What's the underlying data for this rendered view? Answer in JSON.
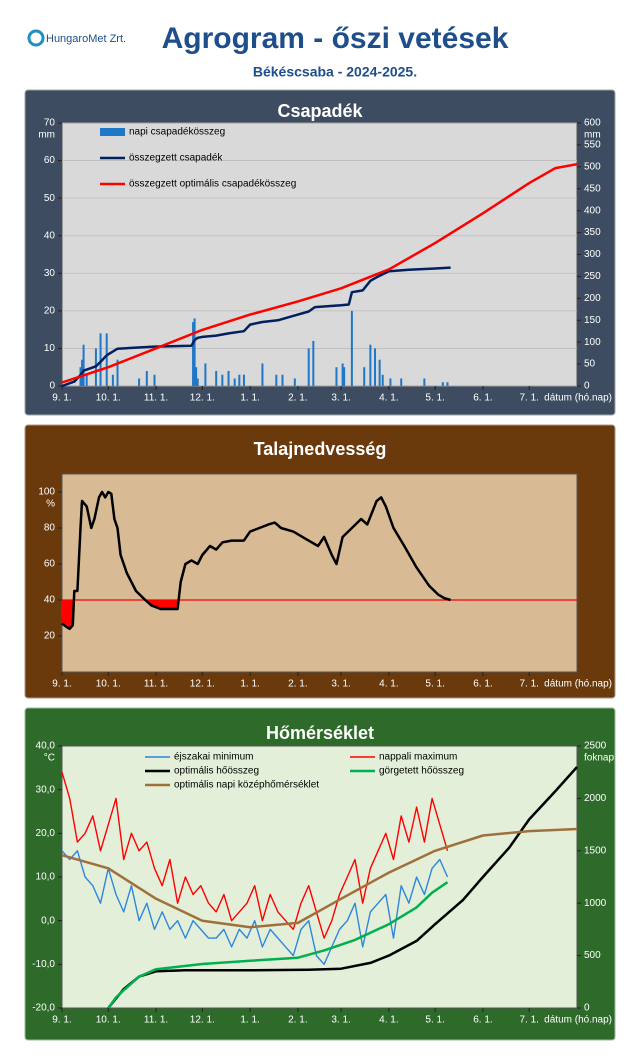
{
  "header": {
    "logo": "HungaroMet Zrt.",
    "title": "Agrogram - őszi vetések",
    "subtitle": "Békéscsaba - 2024-2025."
  },
  "chart_data": [
    {
      "type": "combo",
      "title": "Csapadék",
      "y_unit": "mm",
      "y2_unit": "mm",
      "x_label": "dátum (hó.nap)",
      "xlim": [
        0,
        334
      ],
      "xticks": [
        {
          "value": 0,
          "label": "9. 1."
        },
        {
          "value": 30,
          "label": "10. 1."
        },
        {
          "value": 61,
          "label": "11. 1."
        },
        {
          "value": 91,
          "label": "12. 1."
        },
        {
          "value": 122,
          "label": "1. 1."
        },
        {
          "value": 153,
          "label": "2. 1."
        },
        {
          "value": 181,
          "label": "3. 1."
        },
        {
          "value": 212,
          "label": "4. 1."
        },
        {
          "value": 242,
          "label": "5. 1."
        },
        {
          "value": 273,
          "label": "6. 1."
        },
        {
          "value": 303,
          "label": "7. 1."
        }
      ],
      "ylim": [
        0,
        70
      ],
      "yticks": [
        0,
        10,
        20,
        30,
        40,
        50,
        60,
        70
      ],
      "y2lim": [
        0,
        600
      ],
      "y2ticks": [
        0,
        50,
        100,
        150,
        200,
        250,
        300,
        350,
        400,
        450,
        500,
        550,
        600
      ],
      "grid": true,
      "legend": true,
      "series": [
        {
          "name": "napi csapadékösszeg",
          "kind": "bar",
          "color": "#1f77c8",
          "x": [
            12,
            13,
            14,
            16,
            22,
            25,
            29,
            33,
            36,
            50,
            55,
            60,
            85,
            86,
            87,
            88,
            93,
            100,
            104,
            108,
            112,
            115,
            118,
            130,
            139,
            143,
            151,
            160,
            163,
            178,
            182,
            183,
            188,
            196,
            200,
            203,
            206,
            208,
            213,
            220,
            235,
            247,
            250
          ],
          "values": [
            5,
            7,
            11,
            3,
            10,
            14,
            14,
            3,
            7,
            2,
            4,
            3,
            17,
            18,
            5,
            2,
            6,
            4,
            3,
            4,
            2,
            3,
            3,
            6,
            3,
            3,
            2,
            10,
            12,
            5,
            6,
            5,
            20,
            5,
            11,
            10,
            7,
            3,
            2,
            2,
            2,
            1,
            1
          ]
        },
        {
          "name": "összegzett csapadék",
          "kind": "line",
          "axis": "y2",
          "color": "#002060",
          "width": 2.5,
          "x": [
            0,
            8,
            12,
            14,
            22,
            25,
            29,
            36,
            60,
            84,
            86,
            88,
            91,
            100,
            108,
            118,
            122,
            130,
            140,
            153,
            160,
            164,
            181,
            186,
            188,
            195,
            200,
            204,
            212,
            225,
            242,
            252
          ],
          "values": [
            0,
            10,
            25,
            35,
            45,
            55,
            70,
            85,
            90,
            92,
            105,
            110,
            112,
            115,
            120,
            125,
            140,
            146,
            150,
            163,
            170,
            180,
            184,
            186,
            214,
            218,
            240,
            248,
            262,
            265,
            268,
            270
          ]
        },
        {
          "name": "összegzett optimális csapadékösszeg",
          "kind": "line",
          "axis": "y2",
          "color": "#ff0000",
          "width": 2.5,
          "x": [
            0,
            30,
            61,
            91,
            122,
            153,
            181,
            212,
            242,
            273,
            303,
            320,
            334
          ],
          "values": [
            8,
            43,
            86,
            128,
            163,
            193,
            223,
            266,
            326,
            394,
            463,
            497,
            506
          ]
        }
      ]
    },
    {
      "type": "line",
      "title": "Talajnedvesség",
      "y_unit": "%",
      "x_label": "dátum (hó.nap)",
      "xlim": [
        0,
        334
      ],
      "xticks": [
        {
          "value": 0,
          "label": "9. 1."
        },
        {
          "value": 30,
          "label": "10. 1."
        },
        {
          "value": 61,
          "label": "11. 1."
        },
        {
          "value": 91,
          "label": "12. 1."
        },
        {
          "value": 122,
          "label": "1. 1."
        },
        {
          "value": 153,
          "label": "2. 1."
        },
        {
          "value": 181,
          "label": "3. 1."
        },
        {
          "value": 212,
          "label": "4. 1."
        },
        {
          "value": 242,
          "label": "5. 1."
        },
        {
          "value": 273,
          "label": "6. 1."
        },
        {
          "value": 303,
          "label": "7. 1."
        }
      ],
      "ylim": [
        0,
        110
      ],
      "yticks": [
        20,
        40,
        60,
        80,
        100
      ],
      "threshold": 40,
      "threshold_color": "#ff0000",
      "grid": false,
      "legend": false,
      "series": [
        {
          "kind": "line",
          "color": "#000000",
          "width": 2.5,
          "x": [
            0,
            3,
            5,
            7,
            8,
            10,
            12,
            13,
            16,
            19,
            21,
            24,
            26,
            28,
            30,
            32,
            34,
            36,
            38,
            42,
            48,
            54,
            58,
            64,
            72,
            75,
            77,
            80,
            84,
            88,
            91,
            96,
            100,
            104,
            110,
            118,
            122,
            128,
            134,
            138,
            142,
            150,
            158,
            166,
            170,
            175,
            178,
            182,
            188,
            194,
            198,
            204,
            207,
            210,
            215,
            222,
            230,
            238,
            244,
            248,
            252
          ],
          "values": [
            27,
            25,
            24,
            26,
            45,
            45,
            80,
            95,
            92,
            80,
            85,
            97,
            100,
            97,
            100,
            99,
            85,
            80,
            65,
            55,
            45,
            40,
            37,
            35,
            35,
            35,
            50,
            60,
            62,
            60,
            65,
            70,
            68,
            72,
            73,
            73,
            78,
            80,
            82,
            83,
            80,
            78,
            74,
            70,
            75,
            65,
            60,
            75,
            80,
            85,
            82,
            95,
            97,
            92,
            80,
            70,
            58,
            48,
            43,
            41,
            40
          ]
        }
      ]
    },
    {
      "type": "combo",
      "title": "Hőmérséklet",
      "y_unit": "°C",
      "y2_unit": "foknap",
      "x_label": "dátum (hó.nap)",
      "xlim": [
        0,
        334
      ],
      "xticks": [
        {
          "value": 0,
          "label": "9. 1."
        },
        {
          "value": 30,
          "label": "10. 1."
        },
        {
          "value": 61,
          "label": "11. 1."
        },
        {
          "value": 91,
          "label": "12. 1."
        },
        {
          "value": 122,
          "label": "1. 1."
        },
        {
          "value": 153,
          "label": "2. 1."
        },
        {
          "value": 181,
          "label": "3. 1."
        },
        {
          "value": 212,
          "label": "4. 1."
        },
        {
          "value": 242,
          "label": "5. 1."
        },
        {
          "value": 273,
          "label": "6. 1."
        },
        {
          "value": 303,
          "label": "7. 1."
        }
      ],
      "ylim": [
        -20,
        40
      ],
      "yticks": [
        {
          "value": -20,
          "label": "-20,0"
        },
        {
          "value": -10,
          "label": "-10,0"
        },
        {
          "value": 0,
          "label": "0,0"
        },
        {
          "value": 10,
          "label": "10,0"
        },
        {
          "value": 20,
          "label": "20,0"
        },
        {
          "value": 30,
          "label": "30,0"
        },
        {
          "value": 40,
          "label": "40,0"
        }
      ],
      "y2lim": [
        0,
        2500
      ],
      "y2ticks": [
        0,
        500,
        1000,
        1500,
        2000,
        2500
      ],
      "grid": false,
      "legend": true,
      "series": [
        {
          "name": "éjszakai minimum",
          "kind": "line",
          "color": "#2e86de",
          "width": 1.4,
          "x": [
            0,
            5,
            10,
            15,
            20,
            25,
            30,
            35,
            40,
            45,
            50,
            55,
            60,
            65,
            70,
            75,
            80,
            85,
            90,
            95,
            100,
            105,
            110,
            115,
            120,
            125,
            130,
            135,
            140,
            145,
            150,
            155,
            160,
            165,
            170,
            175,
            180,
            185,
            190,
            195,
            200,
            205,
            210,
            215,
            220,
            225,
            230,
            235,
            240,
            245,
            250
          ],
          "values": [
            16,
            14,
            16,
            10,
            8,
            4,
            12,
            6,
            2,
            8,
            0,
            4,
            -2,
            2,
            -2,
            0,
            -4,
            0,
            -2,
            -4,
            -4,
            -2,
            -6,
            -2,
            -4,
            0,
            -6,
            -2,
            -4,
            -6,
            -8,
            -2,
            0,
            -8,
            -10,
            -6,
            -2,
            0,
            4,
            -6,
            2,
            4,
            6,
            -4,
            8,
            4,
            10,
            6,
            12,
            14,
            10
          ]
        },
        {
          "name": "nappali maximum",
          "kind": "line",
          "color": "#ff0000",
          "width": 1.4,
          "x": [
            0,
            5,
            10,
            15,
            20,
            25,
            30,
            35,
            40,
            45,
            50,
            55,
            60,
            65,
            70,
            75,
            80,
            85,
            90,
            95,
            100,
            105,
            110,
            115,
            120,
            125,
            130,
            135,
            140,
            145,
            150,
            155,
            160,
            165,
            170,
            175,
            180,
            185,
            190,
            195,
            200,
            205,
            210,
            215,
            220,
            225,
            230,
            235,
            240,
            245,
            250
          ],
          "values": [
            34,
            28,
            18,
            20,
            24,
            16,
            22,
            28,
            14,
            20,
            16,
            18,
            12,
            8,
            14,
            4,
            10,
            6,
            8,
            4,
            2,
            6,
            0,
            2,
            4,
            8,
            0,
            6,
            2,
            0,
            -2,
            4,
            8,
            2,
            -4,
            0,
            6,
            10,
            14,
            4,
            12,
            16,
            20,
            14,
            24,
            18,
            26,
            18,
            28,
            22,
            16
          ]
        },
        {
          "name": "optimális hőösszeg",
          "kind": "line",
          "axis": "y2",
          "color": "#000000",
          "width": 2.5,
          "x": [
            30,
            40,
            50,
            61,
            80,
            120,
            160,
            181,
            200,
            212,
            230,
            242,
            260,
            273,
            290,
            303,
            320,
            334
          ],
          "values": [
            0,
            180,
            300,
            350,
            360,
            360,
            365,
            375,
            430,
            500,
            640,
            800,
            1030,
            1250,
            1530,
            1800,
            2070,
            2300
          ]
        },
        {
          "name": "görgetett hőösszeg",
          "kind": "line",
          "axis": "y2",
          "color": "#00b050",
          "width": 2.5,
          "x": [
            30,
            35,
            40,
            50,
            61,
            91,
            122,
            153,
            170,
            190,
            212,
            230,
            240,
            250
          ],
          "values": [
            0,
            100,
            170,
            300,
            370,
            420,
            450,
            480,
            550,
            650,
            800,
            960,
            1100,
            1200
          ]
        },
        {
          "name": "optimális napi középhőmérséklet",
          "kind": "line",
          "color": "#a0703c",
          "width": 2.5,
          "x": [
            0,
            30,
            61,
            91,
            122,
            153,
            181,
            212,
            242,
            273,
            303,
            334
          ],
          "values": [
            15,
            12,
            5,
            0,
            -1.5,
            -0.5,
            5,
            11,
            16,
            19.5,
            20.5,
            21
          ]
        }
      ]
    }
  ]
}
